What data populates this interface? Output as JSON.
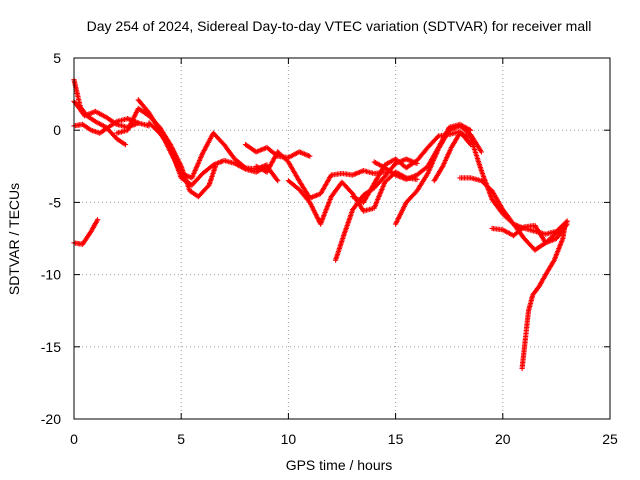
{
  "chart_data": {
    "type": "scatter",
    "title": "Day 254 of 2024, Sidereal Day-to-day VTEC variation (SDTVAR) for receiver mall",
    "xlabel": "GPS time / hours",
    "ylabel": "SDTVAR / TECUs",
    "xlim": [
      0,
      25
    ],
    "ylim": [
      -20,
      5
    ],
    "xticks": [
      "0",
      "5",
      "10",
      "15",
      "20",
      "25"
    ],
    "yticks": [
      "5",
      "0",
      "-5",
      "-10",
      "-15",
      "-20"
    ],
    "grid": true,
    "marker": "+",
    "series_color": "#ff0000",
    "series": [
      {
        "name": "arc-1",
        "x": [
          0.0,
          0.3,
          0.6,
          1.0,
          1.5,
          2.0,
          2.4
        ],
        "y": [
          3.5,
          1.6,
          1.0,
          0.6,
          0.2,
          -0.6,
          -1.0
        ]
      },
      {
        "name": "arc-2",
        "x": [
          0.0,
          0.4,
          0.8,
          1.2,
          1.6,
          2.0,
          2.5,
          3.0,
          3.5
        ],
        "y": [
          0.3,
          0.4,
          0.0,
          -0.2,
          0.2,
          0.6,
          0.8,
          0.5,
          0.3
        ]
      },
      {
        "name": "arc-3",
        "x": [
          0.0,
          0.5,
          1.0,
          1.5,
          2.0,
          2.5,
          3.0
        ],
        "y": [
          2.0,
          1.0,
          1.3,
          0.9,
          0.4,
          0.2,
          0.5
        ]
      },
      {
        "name": "arc-4",
        "x": [
          0.0,
          0.4,
          0.8,
          1.1
        ],
        "y": [
          -7.8,
          -7.9,
          -7.0,
          -6.2
        ]
      },
      {
        "name": "arc-5",
        "x": [
          2.0,
          2.5,
          3.0,
          3.5,
          4.0,
          4.5,
          5.0,
          5.4,
          5.8,
          6.3,
          6.6
        ],
        "y": [
          -0.2,
          0.0,
          1.5,
          1.0,
          0.2,
          -1.0,
          -2.5,
          -4.2,
          -4.6,
          -3.8,
          -2.5
        ]
      },
      {
        "name": "arc-6",
        "x": [
          3.0,
          3.5,
          4.0,
          4.5,
          5.0,
          5.5,
          6.0,
          6.5,
          7.0,
          7.5,
          8.0,
          8.5,
          9.0
        ],
        "y": [
          2.1,
          1.2,
          0.0,
          -1.5,
          -3.0,
          -3.3,
          -1.6,
          -0.2,
          -1.0,
          -2.0,
          -2.6,
          -2.7,
          -2.4
        ]
      },
      {
        "name": "arc-7",
        "x": [
          3.5,
          4.0,
          4.5,
          5.0,
          5.5,
          6.0,
          6.5,
          7.0,
          7.5,
          8.0,
          8.5,
          9.0,
          9.5
        ],
        "y": [
          0.5,
          -0.2,
          -1.2,
          -3.3,
          -3.8,
          -3.0,
          -2.4,
          -2.1,
          -2.3,
          -2.7,
          -2.9,
          -2.5,
          -3.5
        ]
      },
      {
        "name": "arc-8",
        "x": [
          8.0,
          8.5,
          9.0,
          9.5,
          10.0,
          10.5,
          11.0
        ],
        "y": [
          -1.0,
          -1.5,
          -1.2,
          -1.8,
          -1.9,
          -1.5,
          -1.8
        ]
      },
      {
        "name": "arc-9",
        "x": [
          8.5,
          9.0,
          9.5,
          10.0,
          10.5,
          11.0,
          11.5,
          12.0,
          12.5,
          13.0,
          13.5,
          14.0,
          14.5
        ],
        "y": [
          -2.5,
          -2.9,
          -1.5,
          -2.2,
          -3.5,
          -4.7,
          -4.4,
          -3.1,
          -3.0,
          -3.1,
          -2.8,
          -3.0,
          -2.9
        ]
      },
      {
        "name": "arc-10",
        "x": [
          10.0,
          10.5,
          11.0,
          11.5,
          12.0,
          12.5,
          13.0,
          13.5,
          14.0,
          14.5,
          15.0,
          15.5,
          16.0
        ],
        "y": [
          -3.5,
          -4.1,
          -5.0,
          -6.5,
          -4.6,
          -3.6,
          -4.4,
          -5.6,
          -5.4,
          -3.6,
          -2.9,
          -3.3,
          -3.4
        ]
      },
      {
        "name": "arc-11",
        "x": [
          12.2,
          12.6,
          13.0,
          13.5,
          14.0,
          14.5,
          15.0,
          15.5,
          16.0
        ],
        "y": [
          -9.0,
          -7.2,
          -5.5,
          -4.5,
          -4.0,
          -3.2,
          -2.3,
          -2.0,
          -2.3
        ]
      },
      {
        "name": "arc-12",
        "x": [
          13.0,
          13.5,
          14.0,
          14.5,
          15.0,
          15.5,
          16.0,
          16.5,
          17.0,
          17.5,
          18.0,
          18.5
        ],
        "y": [
          -4.6,
          -5.0,
          -3.7,
          -2.4,
          -2.0,
          -2.6,
          -2.1,
          -1.2,
          -0.4,
          -0.3,
          -0.1,
          -1.0
        ]
      },
      {
        "name": "arc-13",
        "x": [
          14.0,
          14.5,
          15.0,
          15.5,
          16.0,
          16.5,
          17.0,
          17.5,
          18.0,
          18.5
        ],
        "y": [
          -2.2,
          -2.6,
          -3.1,
          -3.4,
          -3.1,
          -2.5,
          -1.2,
          0.2,
          0.4,
          0.0
        ]
      },
      {
        "name": "arc-14",
        "x": [
          15.0,
          15.5,
          16.0,
          16.5,
          17.0,
          17.5,
          18.0,
          18.5,
          19.0
        ],
        "y": [
          -6.5,
          -5.0,
          -4.2,
          -3.0,
          -1.3,
          0.0,
          0.3,
          -0.3,
          -1.5
        ]
      },
      {
        "name": "arc-15",
        "x": [
          16.8,
          17.2,
          17.6,
          18.0,
          18.5,
          19.0,
          19.5,
          20.0,
          20.5,
          21.0,
          21.5,
          22.0,
          22.5,
          23.0
        ],
        "y": [
          -3.5,
          -2.5,
          -1.2,
          -0.2,
          -0.5,
          -2.8,
          -4.8,
          -5.8,
          -6.5,
          -6.8,
          -7.0,
          -7.2,
          -7.0,
          -6.3
        ]
      },
      {
        "name": "arc-16",
        "x": [
          18.0,
          18.5,
          19.0,
          19.5,
          20.0,
          20.5,
          21.0,
          21.5,
          22.0,
          22.5,
          23.0
        ],
        "y": [
          -3.3,
          -3.3,
          -3.5,
          -4.2,
          -5.5,
          -6.5,
          -7.5,
          -8.3,
          -7.8,
          -7.1,
          -6.3
        ]
      },
      {
        "name": "arc-17",
        "x": [
          19.5,
          20.0,
          20.5,
          21.0,
          21.5,
          22.0,
          22.5,
          23.0
        ],
        "y": [
          -6.8,
          -6.9,
          -7.3,
          -6.7,
          -6.6,
          -7.8,
          -7.5,
          -6.5
        ]
      },
      {
        "name": "arc-18",
        "x": [
          20.9,
          21.05,
          21.2,
          21.4,
          21.7,
          22.0,
          22.4,
          22.8,
          22.9
        ],
        "y": [
          -16.5,
          -14.5,
          -12.5,
          -11.4,
          -10.8,
          -10.0,
          -9.0,
          -7.5,
          -6.6
        ]
      }
    ]
  }
}
